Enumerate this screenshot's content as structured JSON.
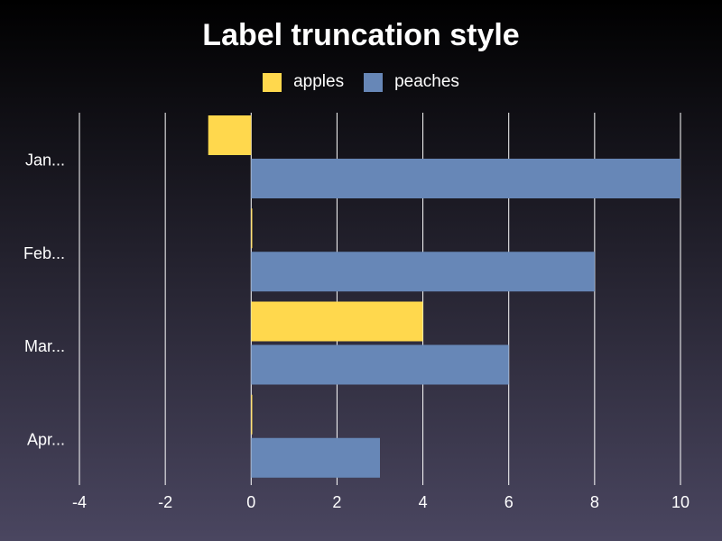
{
  "chart_data": {
    "type": "bar",
    "orientation": "horizontal",
    "title": "Label truncation style",
    "categories": [
      "Jan...",
      "Feb...",
      "Mar...",
      "Apr..."
    ],
    "series": [
      {
        "name": "apples",
        "values": [
          -1,
          0,
          4,
          0
        ],
        "color": "#ffd84d"
      },
      {
        "name": "peaches",
        "values": [
          10,
          8,
          6,
          3
        ],
        "color": "#6787b7"
      }
    ],
    "xlim": [
      -4,
      10
    ],
    "xticks": [
      -4,
      -2,
      0,
      2,
      4,
      6,
      8,
      10
    ],
    "grid": true,
    "legend_position": "top-center",
    "background": "#000000",
    "text_color": "#ffffff",
    "grid_color": "#ffffff"
  }
}
